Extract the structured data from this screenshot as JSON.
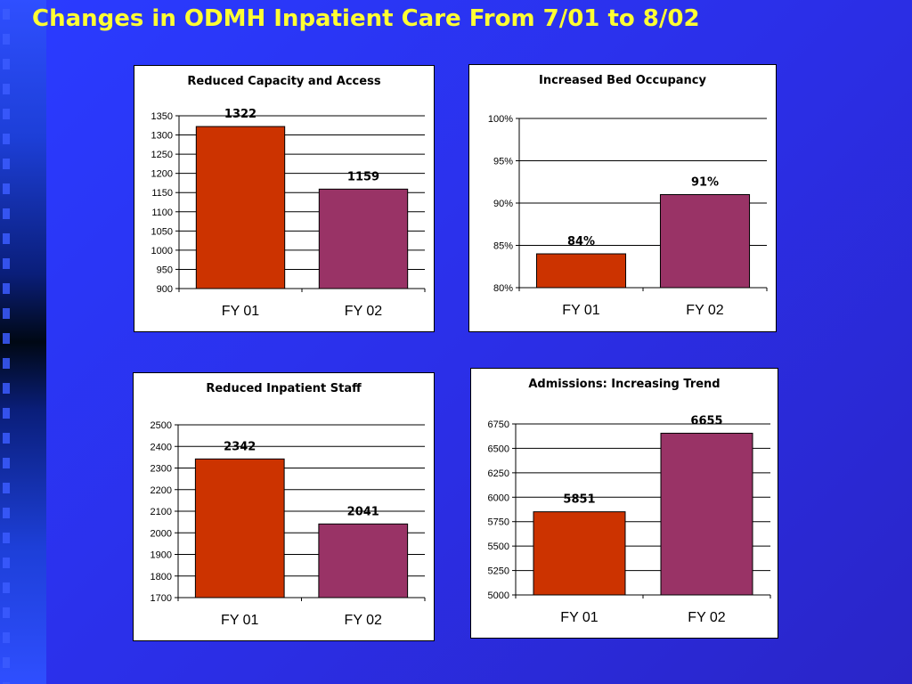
{
  "page": {
    "title": "Changes in ODMH Inpatient Care From 7/01 to 8/02"
  },
  "colors": {
    "fy01": "#cc3300",
    "fy02": "#993366",
    "title": "#ffff33"
  },
  "chart_data": [
    {
      "type": "bar",
      "title": "Reduced Capacity and Access",
      "categories": [
        "FY 01",
        "FY 02"
      ],
      "values": [
        1322,
        1159
      ],
      "value_labels": [
        "1322",
        "1159"
      ],
      "ylim": [
        900,
        1350
      ],
      "yticks": [
        900,
        950,
        1000,
        1050,
        1100,
        1150,
        1200,
        1250,
        1300,
        1350
      ],
      "ytick_labels": [
        "900",
        "950",
        "1000",
        "1050",
        "1100",
        "1150",
        "1200",
        "1250",
        "1300",
        "1350"
      ],
      "grid": true
    },
    {
      "type": "bar",
      "title": "Increased Bed Occupancy",
      "categories": [
        "FY 01",
        "FY 02"
      ],
      "values": [
        84,
        91
      ],
      "value_labels": [
        "84%",
        "91%"
      ],
      "ylim": [
        80,
        100
      ],
      "yticks": [
        80,
        85,
        90,
        95,
        100
      ],
      "ytick_labels": [
        "80%",
        "85%",
        "90%",
        "95%",
        "100%"
      ],
      "grid": true
    },
    {
      "type": "bar",
      "title": "Reduced Inpatient Staff",
      "categories": [
        "FY 01",
        "FY 02"
      ],
      "values": [
        2342,
        2041
      ],
      "value_labels": [
        "2342",
        "2041"
      ],
      "ylim": [
        1700,
        2500
      ],
      "yticks": [
        1700,
        1800,
        1900,
        2000,
        2100,
        2200,
        2300,
        2400,
        2500
      ],
      "ytick_labels": [
        "1700",
        "1800",
        "1900",
        "2000",
        "2100",
        "2200",
        "2300",
        "2400",
        "2500"
      ],
      "grid": true
    },
    {
      "type": "bar",
      "title": "Admissions:  Increasing Trend",
      "categories": [
        "FY 01",
        "FY 02"
      ],
      "values": [
        5851,
        6655
      ],
      "value_labels": [
        "5851",
        "6655"
      ],
      "ylim": [
        5000,
        6750
      ],
      "yticks": [
        5000,
        5250,
        5500,
        5750,
        6000,
        6250,
        6500,
        6750
      ],
      "ytick_labels": [
        "5000",
        "5250",
        "5500",
        "5750",
        "6000",
        "6250",
        "6500",
        "6750"
      ],
      "grid": true
    }
  ]
}
